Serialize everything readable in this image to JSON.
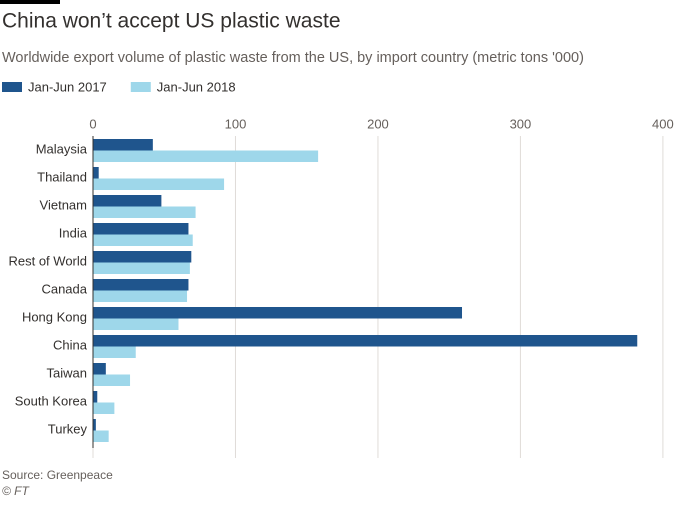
{
  "title": "China won’t accept US plastic waste",
  "subtitle": "Worldwide export volume of plastic waste from the US, by import country (metric tons '000)",
  "source": "Source: Greenpeace",
  "credit": "© FT",
  "chart_data": {
    "type": "bar",
    "orientation": "horizontal",
    "categories": [
      "Malaysia",
      "Thailand",
      "Vietnam",
      "India",
      "Rest of World",
      "Canada",
      "Hong Kong",
      "China",
      "Taiwan",
      "South Korea",
      "Turkey"
    ],
    "series": [
      {
        "name": "Jan-Jun 2017",
        "color": "#1f558d",
        "values": [
          42,
          4,
          48,
          67,
          69,
          67,
          259,
          382,
          9,
          3,
          2
        ]
      },
      {
        "name": "Jan-Jun 2018",
        "color": "#9ed7ea",
        "values": [
          158,
          92,
          72,
          70,
          68,
          66,
          60,
          30,
          26,
          15,
          11
        ]
      }
    ],
    "xlim": [
      0,
      412
    ],
    "xticks": [
      0,
      100,
      200,
      300,
      400
    ],
    "grid": true,
    "legend": "top-left"
  }
}
